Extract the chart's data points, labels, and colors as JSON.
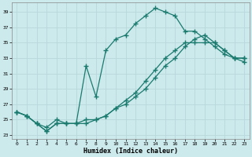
{
  "xlabel": "Humidex (Indice chaleur)",
  "ylabel": "",
  "xlim": [
    -0.5,
    23.5
  ],
  "ylim": [
    22.5,
    40.2
  ],
  "xticks": [
    0,
    1,
    2,
    3,
    4,
    5,
    6,
    7,
    8,
    9,
    10,
    11,
    12,
    13,
    14,
    15,
    16,
    17,
    18,
    19,
    20,
    21,
    22,
    23
  ],
  "yticks": [
    23,
    25,
    27,
    29,
    31,
    33,
    35,
    37,
    39
  ],
  "background_color": "#cce9ec",
  "grid_color": "#b8d8dc",
  "line_color": "#1a7a6e",
  "line1_x": [
    0,
    1,
    2,
    3,
    4,
    5,
    6,
    7,
    8,
    9,
    10,
    11,
    12,
    13,
    14,
    15,
    16,
    17,
    18,
    19,
    20,
    21,
    22,
    23
  ],
  "line1_y": [
    26,
    25.5,
    24.5,
    24,
    25,
    24.5,
    24.5,
    25,
    25,
    25.5,
    26.5,
    27,
    28,
    29,
    30.5,
    32,
    33,
    34.5,
    35.5,
    36,
    35,
    34,
    33,
    33
  ],
  "line2_x": [
    0,
    1,
    2,
    3,
    4,
    5,
    6,
    7,
    8,
    9,
    10,
    11,
    12,
    13,
    14,
    15,
    16,
    17,
    18,
    19,
    20,
    21,
    22,
    23
  ],
  "line2_y": [
    26,
    25.5,
    24.5,
    23.5,
    24.5,
    24.5,
    24.5,
    32,
    28,
    34,
    35.5,
    36,
    37.5,
    38.5,
    39.5,
    39,
    38.5,
    36.5,
    36.5,
    35.5,
    34.5,
    33.5,
    33,
    32.5
  ],
  "line3_x": [
    0,
    1,
    2,
    3,
    4,
    5,
    6,
    7,
    8,
    9,
    10,
    11,
    12,
    13,
    14,
    15,
    16,
    17,
    18,
    19,
    20,
    21,
    22,
    23
  ],
  "line3_y": [
    26,
    25.5,
    24.5,
    23.5,
    24.5,
    24.5,
    24.5,
    24.5,
    25,
    25.5,
    26.5,
    27.5,
    28.5,
    30,
    31.5,
    33,
    34,
    35,
    35,
    35,
    35,
    34,
    33,
    33
  ],
  "marker": "+",
  "markersize": 4,
  "linewidth": 0.9,
  "markeredgewidth": 1.0
}
